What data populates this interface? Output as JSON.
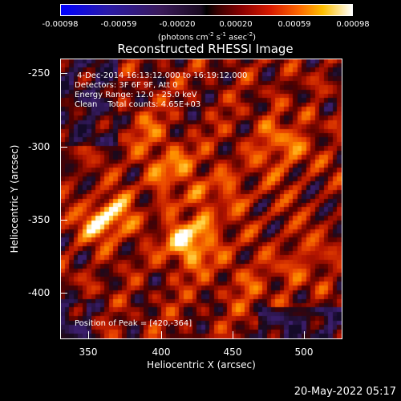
{
  "colorbar": {
    "ticks": [
      "-0.00098",
      "-0.00059",
      "-0.00020",
      "0.00020",
      "0.00059",
      "0.00098"
    ],
    "unit_prefix": "(photons cm",
    "unit_exp1": "-2",
    "unit_mid1": " s",
    "unit_exp2": "-1",
    "unit_mid2": " asec",
    "unit_exp3": "-2",
    "unit_suffix": ")"
  },
  "plot": {
    "title": "Reconstructed RHESSI Image",
    "annotations": {
      "time": "4-Dec-2014 16:13:12.000 to 16:19:12.000",
      "detectors": "Detectors: 3F 6F 9F, Att 0",
      "energy": "Energy Range: 12.0 - 25.0 keV",
      "clean": "Clean    Total counts: 4.65E+03",
      "peak": "Position of Peak = [420,-364]"
    },
    "xlabel": "Heliocentric X (arcsec)",
    "ylabel": "Heliocentric Y (arcsec)",
    "xticks": [
      "350",
      "400",
      "450",
      "500"
    ],
    "yticks": [
      "-250",
      "-300",
      "-350",
      "-400"
    ]
  },
  "image_data": {
    "x_range": [
      332,
      528
    ],
    "y_range": [
      -434,
      -238
    ],
    "peak": [
      420,
      -364
    ],
    "colormap": [
      "#0000ff",
      "#3a1a5a",
      "#000000",
      "#8a0000",
      "#ff6a00",
      "#ffffff"
    ]
  },
  "footer": {
    "date": "20-May-2022 05:17"
  }
}
